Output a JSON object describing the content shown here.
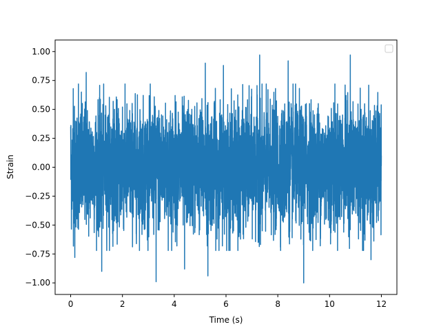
{
  "chart_data": {
    "type": "line",
    "title": "",
    "xlabel": "Time (s)",
    "ylabel": "Strain",
    "xlim": [
      -0.6,
      12.6
    ],
    "ylim": [
      -1.1,
      1.1
    ],
    "xticks": [
      0,
      2,
      4,
      6,
      8,
      10,
      12
    ],
    "xtick_labels": [
      "0",
      "2",
      "4",
      "6",
      "8",
      "10",
      "12"
    ],
    "yticks": [
      -1.0,
      -0.75,
      -0.5,
      -0.25,
      0.0,
      0.25,
      0.5,
      0.75,
      1.0
    ],
    "ytick_labels": [
      "−1.00",
      "−0.75",
      "−0.50",
      "−0.25",
      "0.00",
      "0.25",
      "0.50",
      "0.75",
      "1.00"
    ],
    "grid": false,
    "legend": {
      "placement": "top-right",
      "entries": []
    },
    "line_color": "#1f77b4",
    "signal": {
      "description_free": true,
      "x_start": 0.0,
      "x_end": 12.0,
      "y_min": -1.0,
      "y_max": 1.0
    },
    "series": [
      {
        "x": [
          0.0,
          0.1,
          0.16,
          0.3,
          0.6,
          1.2,
          2.0,
          3.3,
          3.4,
          4.4,
          5.2,
          5.3,
          5.9,
          6.5,
          7.3,
          7.4,
          8.4,
          9.0,
          9.1,
          10.8,
          11.6,
          12.0
        ],
        "y": [
          0.35,
          0.68,
          -0.78,
          0.72,
          0.82,
          -0.9,
          0.52,
          -0.99,
          0.45,
          -0.88,
          0.9,
          -0.94,
          0.88,
          -0.6,
          0.97,
          -0.55,
          0.92,
          -1.0,
          0.55,
          0.97,
          -0.8,
          0.1
        ]
      }
    ]
  }
}
